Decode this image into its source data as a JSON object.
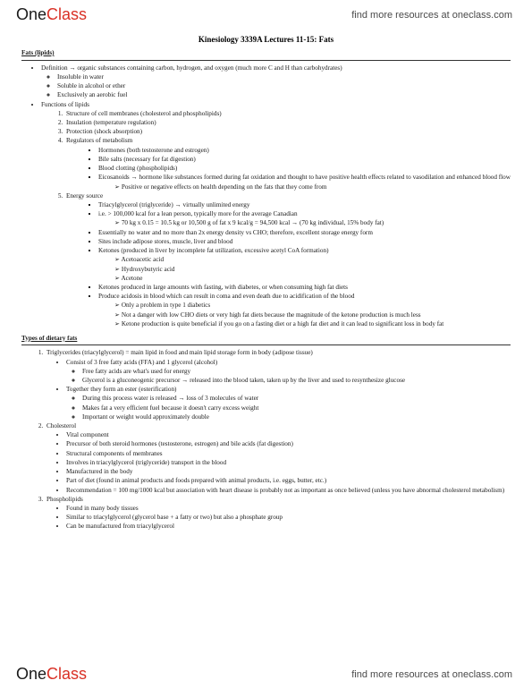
{
  "brand": {
    "part1": "One",
    "part2": "Class"
  },
  "header_link": "find more resources at oneclass.com",
  "footer_link": "find more resources at oneclass.com",
  "doc_title": "Kinesiology 3339A Lectures 11-15: Fats",
  "s1": {
    "heading": "Fats (lipids)",
    "def_label": "Definition → organic substances containing carbon, hydrogen, and oxygen (much more C and H than carbohydrates)",
    "def1": "Insoluble in water",
    "def2": "Soluble in alcohol or ether",
    "def3": "Exclusively an aerobic fuel",
    "func_label": "Functions of lipids",
    "f1": "Structure of cell membranes (cholesterol and phospholipids)",
    "f2": "Insulation (temperature regulation)",
    "f3": "Protection (shock absorption)",
    "f4": "Regulators of metabolism",
    "f4a": "Hormones (both testosterone and estrogen)",
    "f4b": "Bile salts (necessary for fat digestion)",
    "f4c": "Blood clotting (phospholipids)",
    "f4d": "Eicosanoids → hormone like substances formed during fat oxidation and thought to have positive health effects related to vasodilation and enhanced blood flow",
    "f4d1": "Positive or negative effects on health depending on the fats that they come from",
    "f5": "Energy source",
    "f5a": "Triacylglycerol (triglyceride) → virtually unlimited energy",
    "f5b": "i.e. > 100,000 kcal for a lean person, typically more for the average Canadian",
    "f5b1": "70 kg x 0.15 = 10.5 kg or 10,500 g of fat x 9 kcal/g = 94,500 kcal → (70 kg individual, 15% body fat)",
    "f5c": "Essentially no water and no more than 2x energy density vs CHO; therefore, excellent storage energy form",
    "f5d": "Sites include adipose stores, muscle, liver and blood",
    "f5e": "Ketones (produced in liver by incomplete fat utilization, excessive acetyl CoA formation)",
    "f5e1": "Acetoacetic acid",
    "f5e2": "Hydroxybutyric acid",
    "f5e3": "Acetone",
    "f5f": "Ketones produced in large amounts with fasting, with diabetes, or when consuming high fat diets",
    "f5g": "Produce acidosis in blood which can result in coma and even death due to acidification of the blood",
    "f5g1": "Only a problem in type 1 diabetics",
    "f5g2": "Not a danger with low CHO diets or very high fat diets because the magnitude of the ketone production is much less",
    "f5g3": "Ketone production is quite beneficial if you go on a fasting diet or a high fat diet and it can lead to significant loss in body fat"
  },
  "s2": {
    "heading": "Types of dietary fats",
    "t1": "Triglycerides (triacylglycerol) = main lipid in food and main lipid storage form in body (adipose tissue)",
    "t1a": "Consist of 3 free fatty acids (FFA) and 1 glycerol (alcohol)",
    "t1a1": "Free fatty acids are what's used for energy",
    "t1a2": "Glycerol is a gluconeogenic precursor → released into the blood taken, taken up by the liver and used to resynthesize glucose",
    "t1b": "Together they form an ester (esterification)",
    "t1b1": "During this process water is released → loss of 3 molecules of water",
    "t1b2": "Makes fat a very efficient fuel because it doesn't carry excess weight",
    "t1b3": "Important or weight would approximately double",
    "t2": "Cholesterol",
    "t2a": "Vital component",
    "t2b": "Precursor of both steroid hormones (testosterone, estrogen) and bile acids (fat digestion)",
    "t2c": "Structural components of membranes",
    "t2d": "Involves in triacylglycerol (triglyceride) transport in the blood",
    "t2e": "Manufactured in the body",
    "t2f": "Part of diet (found in animal products and foods prepared with animal products, i.e. eggs, butter, etc.)",
    "t2g": "Recommendation = 100 mg/1000 kcal but association with heart disease is probably not as important as once believed (unless you have abnormal cholesterol metabolism)",
    "t3": "Phospholipids",
    "t3a": "Found in many body tissues",
    "t3b": "Similar to triacylglycerol (glycerol base + a fatty or two) but also a phosphate group",
    "t3c": "Can be manufactured from triacylglycerol"
  }
}
